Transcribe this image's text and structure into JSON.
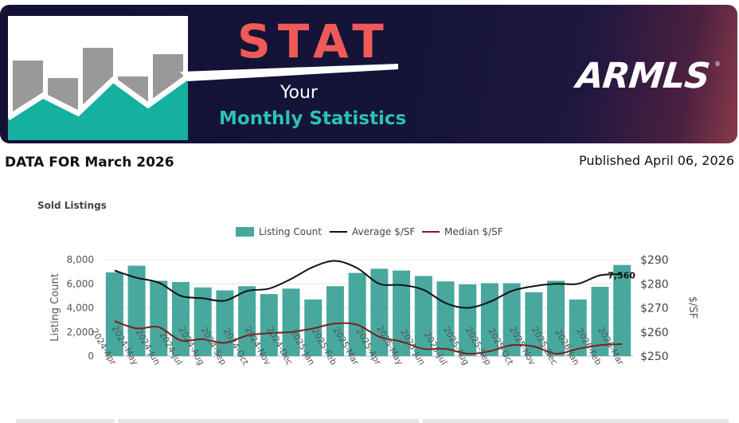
{
  "banner": {
    "title": "STAT",
    "subtitle_line1": "Your",
    "subtitle_line2": "Monthly Statistics",
    "logo": "ARMLS",
    "logo_mark": "®",
    "colors": {
      "background": "#131236",
      "title": "#ef5a57",
      "accent": "#2bc3b2"
    }
  },
  "header": {
    "data_for": "DATA FOR March 2026",
    "published": "Published April 06, 2026"
  },
  "panel": {
    "title": "Sold Listings"
  },
  "chart_data": {
    "type": "bar",
    "title": "Sold Listings",
    "categories": [
      "2024-Apr",
      "2024-May",
      "2024-Jun",
      "2024-Jul",
      "2024-Aug",
      "2024-Sep",
      "2024-Oct",
      "2024-Nov",
      "2024-Dec",
      "2025-Jan",
      "2025-Feb",
      "2025-Mar",
      "2025-Apr",
      "2025-May",
      "2025-Jun",
      "2025-Jul",
      "2025-Aug",
      "2025-Sep",
      "2025-Oct",
      "2025-Nov",
      "2025-Dec",
      "2026-Jan",
      "2026-Feb",
      "2026-Mar"
    ],
    "series": [
      {
        "name": "Listing Count",
        "type": "bar",
        "axis": "left",
        "color": "#48a89d",
        "values": [
          6950,
          7500,
          6250,
          6150,
          5700,
          5450,
          5800,
          5150,
          5600,
          4700,
          5800,
          6900,
          7250,
          7100,
          6650,
          6200,
          5950,
          6050,
          6050,
          5300,
          6250,
          4700,
          5750,
          7560
        ]
      },
      {
        "name": "Average $/SF",
        "type": "line",
        "axis": "right",
        "color": "#111111",
        "values": [
          285.5,
          282.5,
          280.5,
          275,
          274,
          273,
          277,
          278,
          282,
          287,
          289.5,
          286.5,
          280,
          279.5,
          277.5,
          272,
          270,
          272.5,
          277,
          279,
          280,
          280,
          283.5,
          284
        ]
      },
      {
        "name": "Median $/SF",
        "type": "line",
        "axis": "right",
        "color": "#7a1f1f",
        "values": [
          264.5,
          261.5,
          262,
          256.5,
          257,
          255.5,
          258.5,
          259.5,
          260,
          261.5,
          263.5,
          263,
          258,
          256,
          253,
          253,
          251,
          252,
          254.5,
          254,
          251,
          253,
          254.5,
          255
        ]
      }
    ],
    "data_labels": [
      {
        "index": 23,
        "text": "7,560"
      }
    ],
    "y_left": {
      "label": "Listing Count",
      "min": 0,
      "max": 8000,
      "ticks": [
        "0",
        "2,000",
        "4,000",
        "6,000",
        "8,000"
      ]
    },
    "y_right": {
      "label": "$/SF",
      "min": 250,
      "max": 290,
      "ticks": [
        "$250",
        "$260",
        "$270",
        "$280",
        "$290"
      ]
    },
    "grid": true,
    "legend_position": "top-center"
  }
}
